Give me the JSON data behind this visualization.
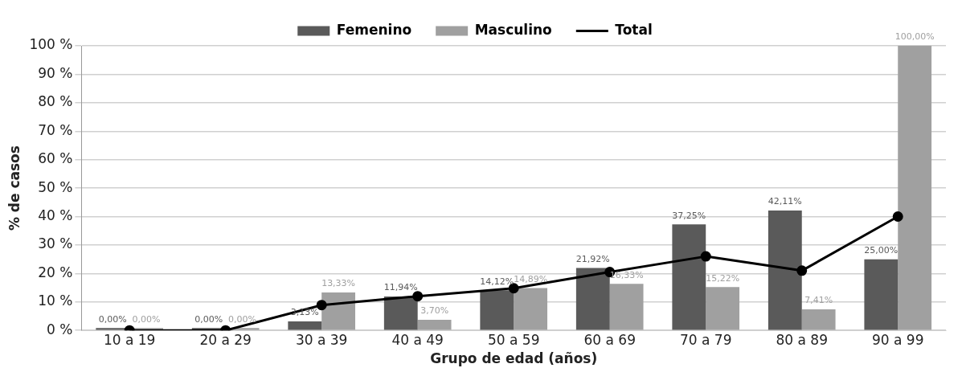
{
  "chart_data": {
    "type": "bar",
    "xlabel": "Grupo de edad (años)",
    "ylabel": "% de casos",
    "categories": [
      "10 a 19",
      "20 a 29",
      "30 a 39",
      "40 a 49",
      "50 a 59",
      "60 a 69",
      "70 a 79",
      "80 a 89",
      "90 a 99"
    ],
    "series": [
      {
        "name": "Femenino",
        "color": "#5a5a5a",
        "values": [
          0,
          0,
          3.13,
          11.94,
          14.12,
          21.92,
          37.25,
          42.11,
          25
        ],
        "value_labels": [
          "0,00%",
          "0,00%",
          "3,13%",
          "11,94%",
          "14,12%",
          "21,92%",
          "37,25%",
          "42,11%",
          "25,00%"
        ]
      },
      {
        "name": "Masculino",
        "color": "#a0a0a0",
        "values": [
          0,
          0,
          13.33,
          3.7,
          14.89,
          16.33,
          15.22,
          7.41,
          100
        ],
        "value_labels": [
          "0,00%",
          "0,00%",
          "13,33%",
          "3,70%",
          "14,89%",
          "16,33%",
          "15,22%",
          "7,41%",
          "100,00%"
        ]
      },
      {
        "name": "Total",
        "type": "line",
        "color": "#000000",
        "values": [
          0,
          0,
          8.9,
          12,
          14.8,
          20.5,
          26,
          21,
          40
        ]
      }
    ],
    "ylim": [
      0,
      100
    ],
    "yticks": [
      {
        "value": 0,
        "label": "0 %"
      },
      {
        "value": 10,
        "label": "10 %"
      },
      {
        "value": 20,
        "label": "20 %"
      },
      {
        "value": 30,
        "label": "30 %"
      },
      {
        "value": 40,
        "label": "40 %"
      },
      {
        "value": 50,
        "label": "50 %"
      },
      {
        "value": 60,
        "label": "60 %"
      },
      {
        "value": 70,
        "label": "70 %"
      },
      {
        "value": 80,
        "label": "80 %"
      },
      {
        "value": 90,
        "label": "90 %"
      },
      {
        "value": 100,
        "label": "100 %"
      }
    ],
    "grid": "y",
    "legend": "top",
    "marker": "circle",
    "line_style": "solid"
  }
}
